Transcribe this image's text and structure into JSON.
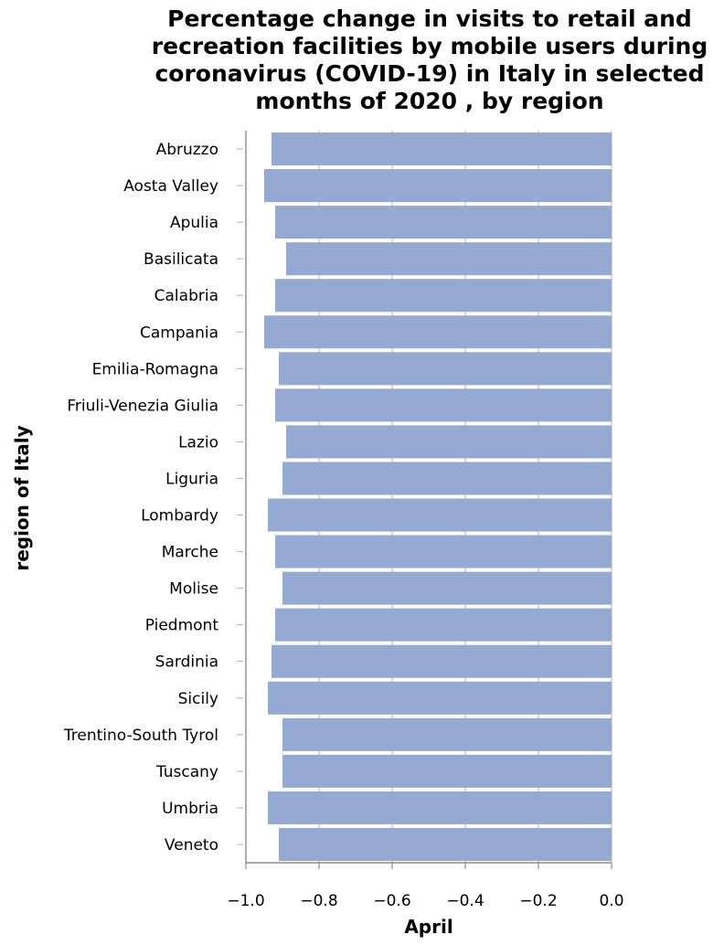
{
  "chart_data": {
    "type": "bar",
    "orientation": "horizontal",
    "title": "Percentage change in visits to retail and recreation facilities by mobile users during coronavirus (COVID-19) in Italy in selected months of 2020 , by region",
    "xlabel": "April",
    "ylabel": "region of Italy",
    "xlim": [
      -1.0,
      0.0
    ],
    "xticks": [
      -1.0,
      -0.8,
      -0.6,
      -0.4,
      -0.2,
      0.0
    ],
    "xtick_labels": [
      "−1.0",
      "−0.8",
      "−0.6",
      "−0.4",
      "−0.2",
      "0.0"
    ],
    "grid": true,
    "bar_color": "#94aad2",
    "categories": [
      "Abruzzo",
      "Aosta Valley",
      "Apulia",
      "Basilicata",
      "Calabria",
      "Campania",
      "Emilia-Romagna",
      "Friuli-Venezia Giulia",
      "Lazio",
      "Liguria",
      "Lombardy",
      "Marche",
      "Molise",
      "Piedmont",
      "Sardinia",
      "Sicily",
      "Trentino-South Tyrol",
      "Tuscany",
      "Umbria",
      "Veneto"
    ],
    "values": [
      -0.93,
      -0.95,
      -0.92,
      -0.89,
      -0.92,
      -0.95,
      -0.91,
      -0.92,
      -0.89,
      -0.9,
      -0.94,
      -0.92,
      -0.9,
      -0.92,
      -0.93,
      -0.94,
      -0.9,
      -0.9,
      -0.94,
      -0.91
    ]
  }
}
